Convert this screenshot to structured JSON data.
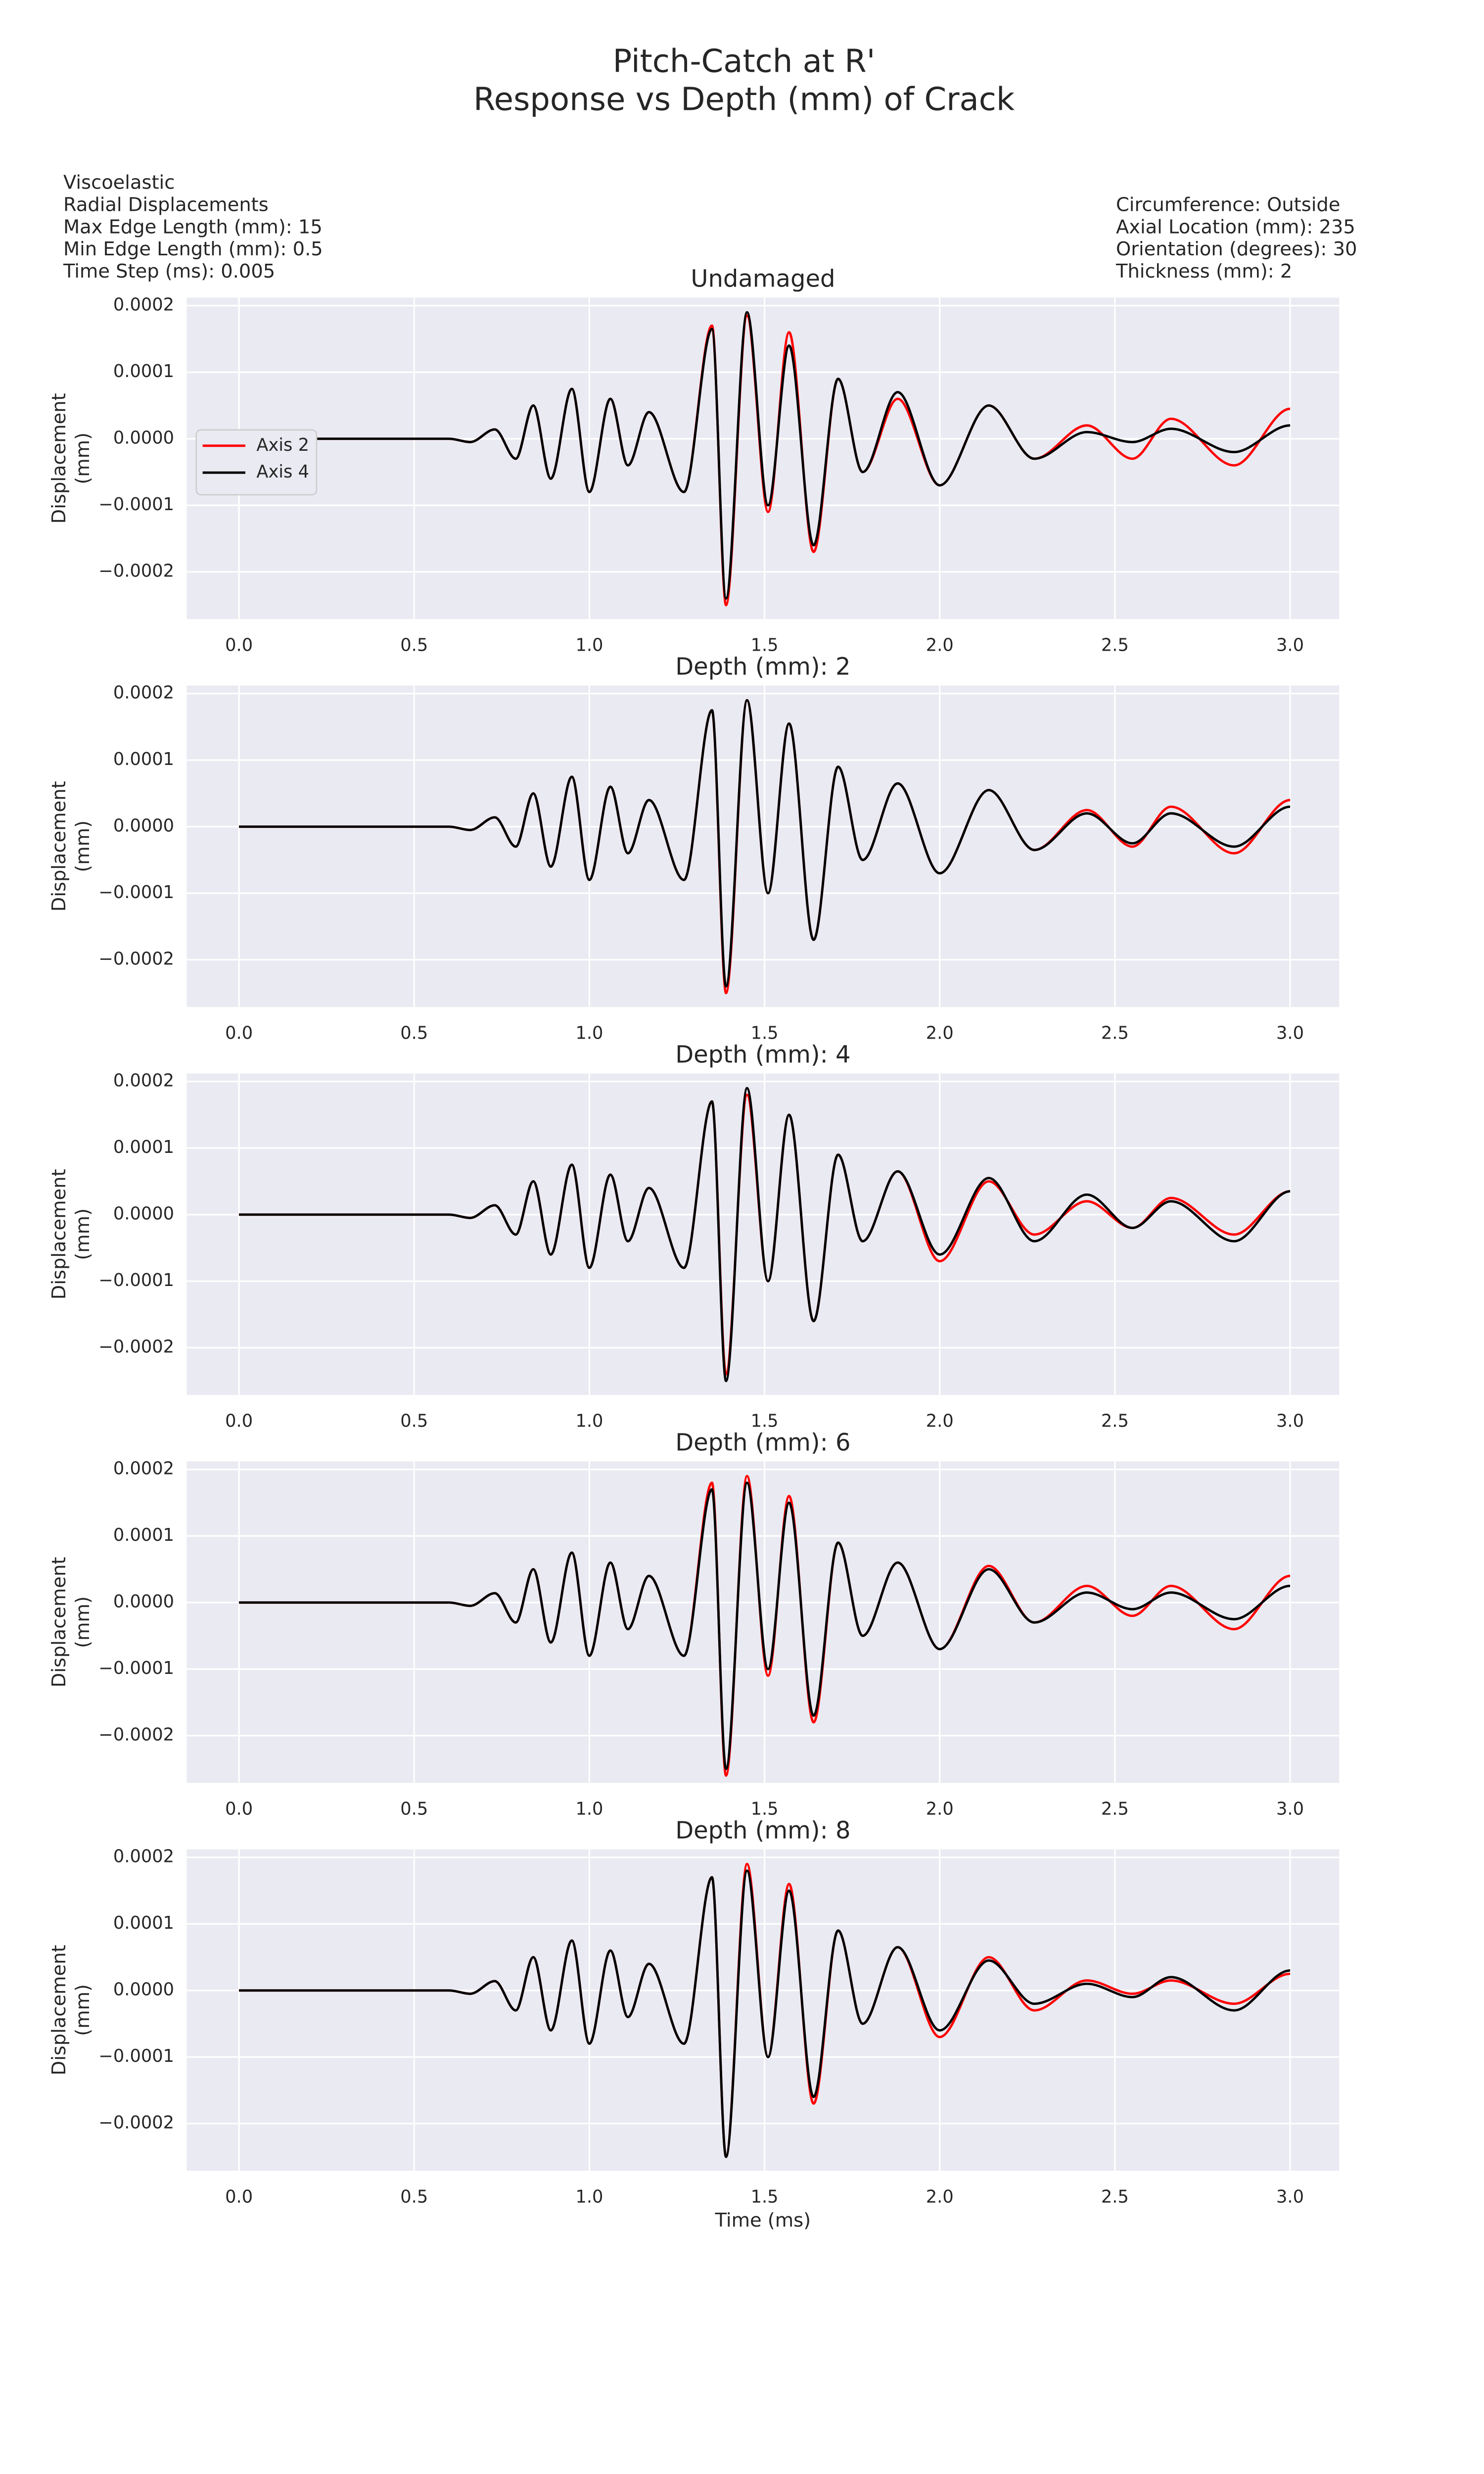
{
  "title": [
    "Pitch-Catch at R'",
    "Response vs Depth (mm) of Crack"
  ],
  "notes_left": [
    "Viscoelastic",
    "Radial Displacements",
    "Max Edge Length (mm): 15",
    "Min Edge Length (mm): 0.5",
    "Time Step (ms): 0.005"
  ],
  "notes_right": [
    "Circumference: Outside",
    "Axial Location (mm): 235",
    "Orientation (degrees): 30",
    "Thickness (mm): 2"
  ],
  "chart_data": [
    {
      "type": "line",
      "title": "Undamaged",
      "ylabel": [
        "Displacement",
        "(mm)"
      ],
      "legend": "center left",
      "grid": true,
      "x": [
        0,
        0.6,
        0.66,
        0.73,
        0.79,
        0.84,
        0.89,
        0.95,
        1.0,
        1.06,
        1.11,
        1.17,
        1.27,
        1.35,
        1.39,
        1.45,
        1.51,
        1.57,
        1.64,
        1.71,
        1.78,
        1.88,
        2.0,
        2.14,
        2.27,
        2.42,
        2.55,
        2.66,
        2.84,
        3.0
      ],
      "xlim": [
        -0.149,
        3.14
      ],
      "ylim": [
        -0.000271,
        0.000212
      ],
      "xticks": [
        {
          "value": 0,
          "label": "0.0"
        },
        0.5,
        {
          "value": 1,
          "label": "1.0"
        },
        1.5,
        {
          "value": 2,
          "label": "2.0"
        },
        2.5,
        {
          "value": 3,
          "label": "3.0"
        }
      ],
      "yticks": [
        {
          "value": -0.0002,
          "label": "−0.0002"
        },
        {
          "value": -0.0001,
          "label": "−0.0001"
        },
        {
          "value": 0,
          "label": "0.0000"
        },
        {
          "value": 0.0001,
          "label": "0.0001"
        },
        {
          "value": 0.0002,
          "label": "0.0002"
        }
      ],
      "series": [
        {
          "name": "Axis 2",
          "color": "#ff0000",
          "values": [
            0,
            0,
            -5e-06,
            1.4e-05,
            -3e-05,
            5e-05,
            -6e-05,
            7.5e-05,
            -8e-05,
            6e-05,
            -4e-05,
            4e-05,
            -8e-05,
            0.00017,
            -0.00025,
            0.000185,
            -0.00011,
            0.00016,
            -0.00017,
            9e-05,
            -5e-05,
            6e-05,
            -7e-05,
            5e-05,
            -3e-05,
            2e-05,
            -3e-05,
            3e-05,
            -4e-05,
            4.5e-05
          ]
        },
        {
          "name": "Axis 4",
          "color": "#000000",
          "values": [
            0,
            0,
            -5e-06,
            1.4e-05,
            -3e-05,
            5e-05,
            -6e-05,
            7.5e-05,
            -8e-05,
            6e-05,
            -4e-05,
            4e-05,
            -8e-05,
            0.000165,
            -0.00024,
            0.00019,
            -0.0001,
            0.00014,
            -0.00016,
            9e-05,
            -5e-05,
            7e-05,
            -7e-05,
            5e-05,
            -3e-05,
            1e-05,
            -5e-06,
            1.5e-05,
            -2e-05,
            2e-05
          ]
        }
      ]
    },
    {
      "type": "line",
      "title": "Depth (mm): 2",
      "ylabel": [
        "Displacement",
        "(mm)"
      ],
      "grid": true,
      "x": [
        0,
        0.6,
        0.66,
        0.73,
        0.79,
        0.84,
        0.89,
        0.95,
        1.0,
        1.06,
        1.11,
        1.17,
        1.27,
        1.35,
        1.39,
        1.45,
        1.51,
        1.57,
        1.64,
        1.71,
        1.78,
        1.88,
        2.0,
        2.14,
        2.27,
        2.42,
        2.55,
        2.66,
        2.84,
        3.0
      ],
      "xlim": [
        -0.149,
        3.14
      ],
      "ylim": [
        -0.000271,
        0.000212
      ],
      "xticks": [
        {
          "value": 0,
          "label": "0.0"
        },
        0.5,
        {
          "value": 1,
          "label": "1.0"
        },
        1.5,
        {
          "value": 2,
          "label": "2.0"
        },
        2.5,
        {
          "value": 3,
          "label": "3.0"
        }
      ],
      "yticks": [
        {
          "value": -0.0002,
          "label": "−0.0002"
        },
        {
          "value": -0.0001,
          "label": "−0.0001"
        },
        {
          "value": 0,
          "label": "0.0000"
        },
        {
          "value": 0.0001,
          "label": "0.0001"
        },
        {
          "value": 0.0002,
          "label": "0.0002"
        }
      ],
      "series": [
        {
          "color": "#ff0000",
          "values": [
            0,
            0,
            -5e-06,
            1.4e-05,
            -3e-05,
            5e-05,
            -6e-05,
            7.5e-05,
            -8e-05,
            6e-05,
            -4e-05,
            4e-05,
            -8e-05,
            0.000175,
            -0.00025,
            0.00019,
            -0.0001,
            0.000155,
            -0.00017,
            9e-05,
            -5e-05,
            6.5e-05,
            -7e-05,
            5.5e-05,
            -3.5e-05,
            2.5e-05,
            -3e-05,
            3e-05,
            -4e-05,
            4e-05
          ]
        },
        {
          "color": "#000000",
          "values": [
            0,
            0,
            -5e-06,
            1.4e-05,
            -3e-05,
            5e-05,
            -6e-05,
            7.5e-05,
            -8e-05,
            6e-05,
            -4e-05,
            4e-05,
            -8e-05,
            0.000175,
            -0.00024,
            0.00019,
            -0.0001,
            0.000155,
            -0.00017,
            9e-05,
            -5e-05,
            6.5e-05,
            -7e-05,
            5.5e-05,
            -3.5e-05,
            2e-05,
            -2.5e-05,
            2e-05,
            -3e-05,
            3e-05
          ]
        }
      ]
    },
    {
      "type": "line",
      "title": "Depth (mm): 4",
      "ylabel": [
        "Displacement",
        "(mm)"
      ],
      "grid": true,
      "x": [
        0,
        0.6,
        0.66,
        0.73,
        0.79,
        0.84,
        0.89,
        0.95,
        1.0,
        1.06,
        1.11,
        1.17,
        1.27,
        1.35,
        1.39,
        1.45,
        1.51,
        1.57,
        1.64,
        1.71,
        1.78,
        1.88,
        2.0,
        2.14,
        2.27,
        2.42,
        2.55,
        2.66,
        2.84,
        3.0
      ],
      "xlim": [
        -0.149,
        3.14
      ],
      "ylim": [
        -0.000271,
        0.000212
      ],
      "xticks": [
        {
          "value": 0,
          "label": "0.0"
        },
        0.5,
        {
          "value": 1,
          "label": "1.0"
        },
        1.5,
        {
          "value": 2,
          "label": "2.0"
        },
        2.5,
        {
          "value": 3,
          "label": "3.0"
        }
      ],
      "yticks": [
        {
          "value": -0.0002,
          "label": "−0.0002"
        },
        {
          "value": -0.0001,
          "label": "−0.0001"
        },
        {
          "value": 0,
          "label": "0.0000"
        },
        {
          "value": 0.0001,
          "label": "0.0001"
        },
        {
          "value": 0.0002,
          "label": "0.0002"
        }
      ],
      "series": [
        {
          "color": "#ff0000",
          "values": [
            0,
            0,
            -5e-06,
            1.4e-05,
            -3e-05,
            5e-05,
            -6e-05,
            7.5e-05,
            -8e-05,
            6e-05,
            -4e-05,
            4e-05,
            -8e-05,
            0.00017,
            -0.00024,
            0.00018,
            -0.0001,
            0.00015,
            -0.00016,
            9e-05,
            -4e-05,
            6.5e-05,
            -7e-05,
            5e-05,
            -3e-05,
            2e-05,
            -2e-05,
            2.5e-05,
            -3e-05,
            3.5e-05
          ]
        },
        {
          "color": "#000000",
          "values": [
            0,
            0,
            -5e-06,
            1.4e-05,
            -3e-05,
            5e-05,
            -6e-05,
            7.5e-05,
            -8e-05,
            6e-05,
            -4e-05,
            4e-05,
            -8e-05,
            0.00017,
            -0.00025,
            0.00019,
            -0.0001,
            0.00015,
            -0.00016,
            9e-05,
            -4e-05,
            6.5e-05,
            -6e-05,
            5.5e-05,
            -4e-05,
            3e-05,
            -2e-05,
            2e-05,
            -4e-05,
            3.5e-05
          ]
        }
      ]
    },
    {
      "type": "line",
      "title": "Depth (mm): 6",
      "ylabel": [
        "Displacement",
        "(mm)"
      ],
      "grid": true,
      "x": [
        0,
        0.6,
        0.66,
        0.73,
        0.79,
        0.84,
        0.89,
        0.95,
        1.0,
        1.06,
        1.11,
        1.17,
        1.27,
        1.35,
        1.39,
        1.45,
        1.51,
        1.57,
        1.64,
        1.71,
        1.78,
        1.88,
        2.0,
        2.14,
        2.27,
        2.42,
        2.55,
        2.66,
        2.84,
        3.0
      ],
      "xlim": [
        -0.149,
        3.14
      ],
      "ylim": [
        -0.000271,
        0.000212
      ],
      "xticks": [
        {
          "value": 0,
          "label": "0.0"
        },
        0.5,
        {
          "value": 1,
          "label": "1.0"
        },
        1.5,
        {
          "value": 2,
          "label": "2.0"
        },
        2.5,
        {
          "value": 3,
          "label": "3.0"
        }
      ],
      "yticks": [
        {
          "value": -0.0002,
          "label": "−0.0002"
        },
        {
          "value": -0.0001,
          "label": "−0.0001"
        },
        {
          "value": 0,
          "label": "0.0000"
        },
        {
          "value": 0.0001,
          "label": "0.0001"
        },
        {
          "value": 0.0002,
          "label": "0.0002"
        }
      ],
      "series": [
        {
          "color": "#ff0000",
          "values": [
            0,
            0,
            -5e-06,
            1.4e-05,
            -3e-05,
            5e-05,
            -6e-05,
            7.5e-05,
            -8e-05,
            6e-05,
            -4e-05,
            4e-05,
            -8e-05,
            0.00018,
            -0.00026,
            0.00019,
            -0.00011,
            0.00016,
            -0.00018,
            9e-05,
            -5e-05,
            6e-05,
            -7e-05,
            5.5e-05,
            -3e-05,
            2.5e-05,
            -2e-05,
            2.5e-05,
            -4e-05,
            4e-05
          ]
        },
        {
          "color": "#000000",
          "values": [
            0,
            0,
            -5e-06,
            1.4e-05,
            -3e-05,
            5e-05,
            -6e-05,
            7.5e-05,
            -8e-05,
            6e-05,
            -4e-05,
            4e-05,
            -8e-05,
            0.00017,
            -0.00025,
            0.00018,
            -0.0001,
            0.00015,
            -0.00017,
            9e-05,
            -5e-05,
            6e-05,
            -7e-05,
            5e-05,
            -3e-05,
            1.5e-05,
            -1e-05,
            1.5e-05,
            -2.5e-05,
            2.5e-05
          ]
        }
      ]
    },
    {
      "type": "line",
      "title": "Depth (mm): 8",
      "ylabel": [
        "Displacement",
        "(mm)"
      ],
      "xlabel": "Time (ms)",
      "grid": true,
      "x": [
        0,
        0.6,
        0.66,
        0.73,
        0.79,
        0.84,
        0.89,
        0.95,
        1.0,
        1.06,
        1.11,
        1.17,
        1.27,
        1.35,
        1.39,
        1.45,
        1.51,
        1.57,
        1.64,
        1.71,
        1.78,
        1.88,
        2.0,
        2.14,
        2.27,
        2.42,
        2.55,
        2.66,
        2.84,
        3.0
      ],
      "xlim": [
        -0.149,
        3.14
      ],
      "ylim": [
        -0.000271,
        0.000212
      ],
      "xticks": [
        {
          "value": 0,
          "label": "0.0"
        },
        0.5,
        {
          "value": 1,
          "label": "1.0"
        },
        1.5,
        {
          "value": 2,
          "label": "2.0"
        },
        2.5,
        {
          "value": 3,
          "label": "3.0"
        }
      ],
      "yticks": [
        {
          "value": -0.0002,
          "label": "−0.0002"
        },
        {
          "value": -0.0001,
          "label": "−0.0001"
        },
        {
          "value": 0,
          "label": "0.0000"
        },
        {
          "value": 0.0001,
          "label": "0.0001"
        },
        {
          "value": 0.0002,
          "label": "0.0002"
        }
      ],
      "series": [
        {
          "color": "#ff0000",
          "values": [
            0,
            0,
            -5e-06,
            1.4e-05,
            -3e-05,
            5e-05,
            -6e-05,
            7.5e-05,
            -8e-05,
            6e-05,
            -4e-05,
            4e-05,
            -8e-05,
            0.00017,
            -0.00025,
            0.00019,
            -0.0001,
            0.00016,
            -0.00017,
            9e-05,
            -5e-05,
            6.5e-05,
            -7e-05,
            5e-05,
            -3e-05,
            1.5e-05,
            -5e-06,
            1.5e-05,
            -2e-05,
            2.5e-05
          ]
        },
        {
          "color": "#000000",
          "values": [
            0,
            0,
            -5e-06,
            1.4e-05,
            -3e-05,
            5e-05,
            -6e-05,
            7.5e-05,
            -8e-05,
            6e-05,
            -4e-05,
            4e-05,
            -8e-05,
            0.00017,
            -0.00025,
            0.00018,
            -0.0001,
            0.00015,
            -0.00016,
            9e-05,
            -5e-05,
            6.5e-05,
            -6e-05,
            4.5e-05,
            -2e-05,
            1e-05,
            -1e-05,
            2e-05,
            -3e-05,
            3e-05
          ]
        }
      ]
    }
  ]
}
